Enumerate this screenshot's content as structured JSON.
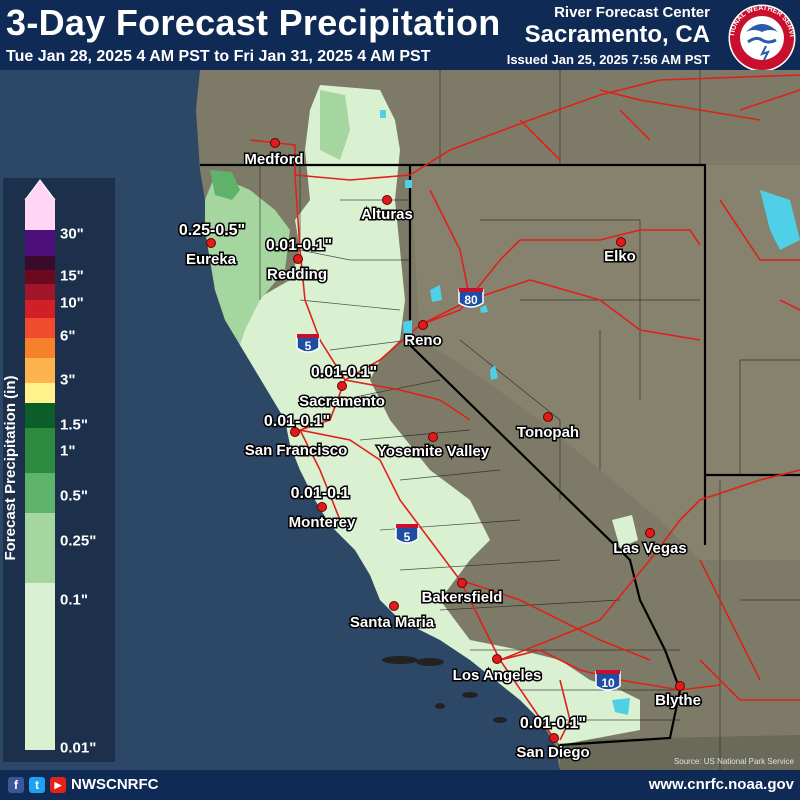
{
  "header": {
    "title": "3-Day Forecast Precipitation",
    "date_range": "Tue Jan 28, 2025 4 AM PST to Fri Jan 31, 2025 4 AM PST",
    "org": "River Forecast Center",
    "city": "Sacramento, CA",
    "issued": "Issued Jan 25, 2025 7:56 AM PST",
    "logo_text": "NATIONAL WEATHER SERVICE"
  },
  "legend": {
    "title": "Forecast Precipitation (in)",
    "ticks": [
      "30\"",
      "15\"",
      "10\"",
      "6\"",
      "3\"",
      "1.5\"",
      "1\"",
      "0.5\"",
      "0.25\"",
      "0.1\"",
      "0.01\""
    ],
    "colors": [
      "#ffd6f5",
      "#4b0e7a",
      "#3b0a2a",
      "#6b0a1e",
      "#a0152a",
      "#d01f26",
      "#ef4b2c",
      "#f7812a",
      "#fdb34e",
      "#fff28a",
      "#0b5e2a",
      "#2b8a3e",
      "#5fb26a",
      "#a5d6a0",
      "#d9f0d1"
    ]
  },
  "cities": [
    {
      "name": "Medford"
    },
    {
      "name": "Alturas"
    },
    {
      "name": "Eureka"
    },
    {
      "name": "Redding"
    },
    {
      "name": "Elko"
    },
    {
      "name": "Reno"
    },
    {
      "name": "Sacramento"
    },
    {
      "name": "San Francisco"
    },
    {
      "name": "Yosemite Valley"
    },
    {
      "name": "Tonopah"
    },
    {
      "name": "Monterey"
    },
    {
      "name": "Las Vegas"
    },
    {
      "name": "Bakersfield"
    },
    {
      "name": "Santa Maria"
    },
    {
      "name": "Los Angeles"
    },
    {
      "name": "Blythe"
    },
    {
      "name": "San Diego"
    }
  ],
  "amounts": [
    {
      "text": "0.25-0.5\""
    },
    {
      "text": "0.01-0.1\""
    },
    {
      "text": "0.01-0.1\""
    },
    {
      "text": "0.01-0.1\""
    },
    {
      "text": "0.01-0.1"
    },
    {
      "text": "0.01-0.1\""
    }
  ],
  "highways": [
    {
      "text": "5"
    },
    {
      "text": "80"
    },
    {
      "text": "5"
    },
    {
      "text": "10"
    }
  ],
  "footer": {
    "facebook": "f",
    "twitter": "t",
    "youtube": "▶",
    "handle": "NWSCNRFC",
    "website": "www.cnrfc.noaa.gov"
  },
  "credit": "Source: US National Park Service",
  "colors": {
    "header_bg": "#0f2a55",
    "ocean": "#2d4866",
    "land": "#7d7b67",
    "precip_light": "#d9f0d1",
    "precip_mid": "#a5d6a0",
    "precip_heavy": "#5fb26a",
    "roads": "#e0201a",
    "water": "#4fd0e6"
  }
}
